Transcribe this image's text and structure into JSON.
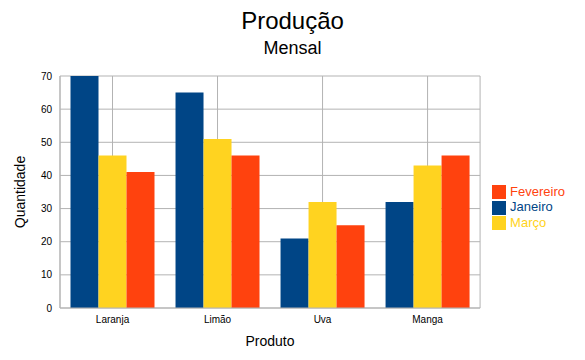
{
  "chart_data": {
    "type": "bar",
    "title": "Produção",
    "subtitle": "Mensal",
    "x_label": "Produto",
    "y_label": "Quantidade",
    "categories": [
      "Laranja",
      "Limão",
      "Uva",
      "Manga"
    ],
    "series": [
      {
        "name": "Janeiro",
        "color": "#004586",
        "values": [
          70,
          65,
          21,
          32
        ]
      },
      {
        "name": "Março",
        "color": "#ffd320",
        "values": [
          46,
          51,
          32,
          43
        ]
      },
      {
        "name": "Fevereiro",
        "color": "#ff420e",
        "values": [
          41,
          46,
          25,
          46
        ]
      }
    ],
    "ylim": [
      0,
      70
    ],
    "yticks": [
      0,
      10,
      20,
      30,
      40,
      50,
      60,
      70
    ],
    "grid": true,
    "legend": "right"
  }
}
